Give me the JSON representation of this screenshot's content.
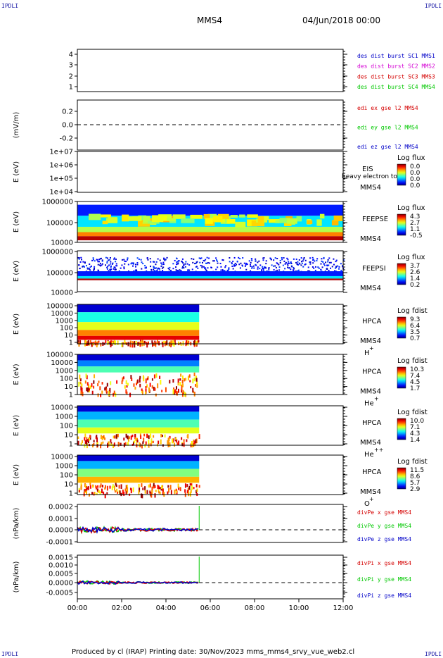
{
  "corners": {
    "tl": "IPDLI",
    "tr": "IPDLI",
    "bl": "IPDLI",
    "br": "IPDLI"
  },
  "header": {
    "spacecraft": "MMS4",
    "date": "04/Jun/2018 00:00"
  },
  "footer": {
    "text": "Produced by cl (IRAP)   Printing date: 30/Nov/2023   mms_mms4_srvy_vue_web2.cl"
  },
  "colors": {
    "red": "#d40000",
    "green": "#00c800",
    "blue": "#0000c8",
    "magenta": "#d400d4",
    "dash": "#000000"
  },
  "chart_data": {
    "type": "multi-panel",
    "x_axis": {
      "range": [
        "00:00",
        "12:00"
      ],
      "ticks": [
        "00:00",
        "02:00",
        "04:00",
        "06:00",
        "08:00",
        "10:00",
        "12:00"
      ]
    },
    "data_end": "05:30",
    "panels": [
      {
        "id": "p1",
        "type": "empty",
        "yticks": [
          "4",
          "3",
          "2",
          "1"
        ],
        "ylabel": "",
        "legend": [
          {
            "text": "des dist burst SC1 MMS1",
            "color": "#0000c8"
          },
          {
            "text": "des dist burst SC2 MMS2",
            "color": "#d400d4"
          },
          {
            "text": "des dist burst SC3 MMS3",
            "color": "#d40000"
          },
          {
            "text": "des dist burst SC4 MMS4",
            "color": "#00c800"
          }
        ]
      },
      {
        "id": "p2",
        "type": "line",
        "yticks": [
          "0.2",
          "0.0",
          "-0.2"
        ],
        "ylabel": "(mV/m)",
        "legend": [
          {
            "text": "edi ex gse l2 MMS4",
            "color": "#d40000"
          },
          {
            "text": "edi ey gse l2 MMS4",
            "color": "#00c800"
          },
          {
            "text": "edi ez gse l2 MMS4",
            "color": "#0000c8"
          }
        ]
      },
      {
        "id": "p3",
        "type": "spectrogram",
        "yticks": [
          "1e+07",
          "1e+06",
          "1e+05",
          "1e+04"
        ],
        "ylabel": "E (eV)",
        "instrument": "EIS",
        "subtitle": "heavy electron to",
        "spacecraft": "MMS4",
        "colorbar": {
          "title": "Log flux",
          "labels": [
            "0.0",
            "0.0",
            "0.0",
            "0.0"
          ]
        }
      },
      {
        "id": "p4",
        "type": "spectrogram",
        "yticks": [
          "1000000",
          "100000",
          "10000"
        ],
        "ylabel": "E (eV)",
        "instrument": "FEEPSE",
        "spacecraft": "MMS4",
        "colorbar": {
          "title": "Log flux",
          "labels": [
            "4.3",
            "2.7",
            "1.1",
            "-0.5"
          ]
        }
      },
      {
        "id": "p5",
        "type": "spectrogram",
        "yticks": [
          "1000000",
          "100000",
          "10000"
        ],
        "ylabel": "E (eV)",
        "instrument": "FEEPSI",
        "spacecraft": "MMS4",
        "colorbar": {
          "title": "Log flux",
          "labels": [
            "3.7",
            "2.6",
            "1.4",
            "0.2"
          ]
        }
      },
      {
        "id": "p6",
        "type": "spectrogram",
        "yticks": [
          "100000",
          "10000",
          "1000",
          "100",
          "10",
          "1"
        ],
        "ylabel": "E (eV)",
        "instrument": "HPCA",
        "spacecraft": "MMS4",
        "species": "H",
        "species_sup": "+",
        "colorbar": {
          "title": "Log fdist",
          "labels": [
            "9.3",
            "6.4",
            "3.5",
            "0.7"
          ]
        }
      },
      {
        "id": "p7",
        "type": "spectrogram",
        "yticks": [
          "100000",
          "10000",
          "1000",
          "100",
          "10",
          "1"
        ],
        "ylabel": "E (eV)",
        "instrument": "HPCA",
        "spacecraft": "MMS4",
        "species": "He",
        "species_sup": "+",
        "colorbar": {
          "title": "Log fdist",
          "labels": [
            "10.3",
            "7.4",
            "4.5",
            "1.7"
          ]
        }
      },
      {
        "id": "p8",
        "type": "spectrogram",
        "yticks": [
          "10000",
          "1000",
          "100",
          "10",
          "1"
        ],
        "ylabel": "E (eV)",
        "instrument": "HPCA",
        "spacecraft": "MMS4",
        "species": "He",
        "species_sup": "++",
        "colorbar": {
          "title": "Log fdist",
          "labels": [
            "10.0",
            "7.1",
            "4.3",
            "1.4"
          ]
        }
      },
      {
        "id": "p9",
        "type": "spectrogram",
        "yticks": [
          "10000",
          "1000",
          "100",
          "10",
          "1"
        ],
        "ylabel": "E (eV)",
        "instrument": "HPCA",
        "spacecraft": "MMS4",
        "species": "O",
        "species_sup": "+",
        "colorbar": {
          "title": "Log fdist",
          "labels": [
            "11.5",
            "8.6",
            "5.7",
            "2.9"
          ]
        }
      },
      {
        "id": "p10",
        "type": "line",
        "yticks": [
          "0.0002",
          "0.0001",
          "0.0000",
          "-0.0001"
        ],
        "ylabel": "(nPa/km)",
        "legend": [
          {
            "text": "divPe x gse MMS4",
            "color": "#d40000"
          },
          {
            "text": "divPe y gse MMS4",
            "color": "#00c800"
          },
          {
            "text": "divPe z gse MMS4",
            "color": "#0000c8"
          }
        ]
      },
      {
        "id": "p11",
        "type": "line",
        "yticks": [
          "0.0015",
          "0.0010",
          "0.0005",
          "0.0000",
          "-0.0005"
        ],
        "ylabel": "(nPa/km)",
        "legend": [
          {
            "text": "divPi x gse MMS4",
            "color": "#d40000"
          },
          {
            "text": "divPi y gse MMS4",
            "color": "#00c800"
          },
          {
            "text": "divPi z gse MMS4",
            "color": "#0000c8"
          }
        ]
      }
    ]
  }
}
